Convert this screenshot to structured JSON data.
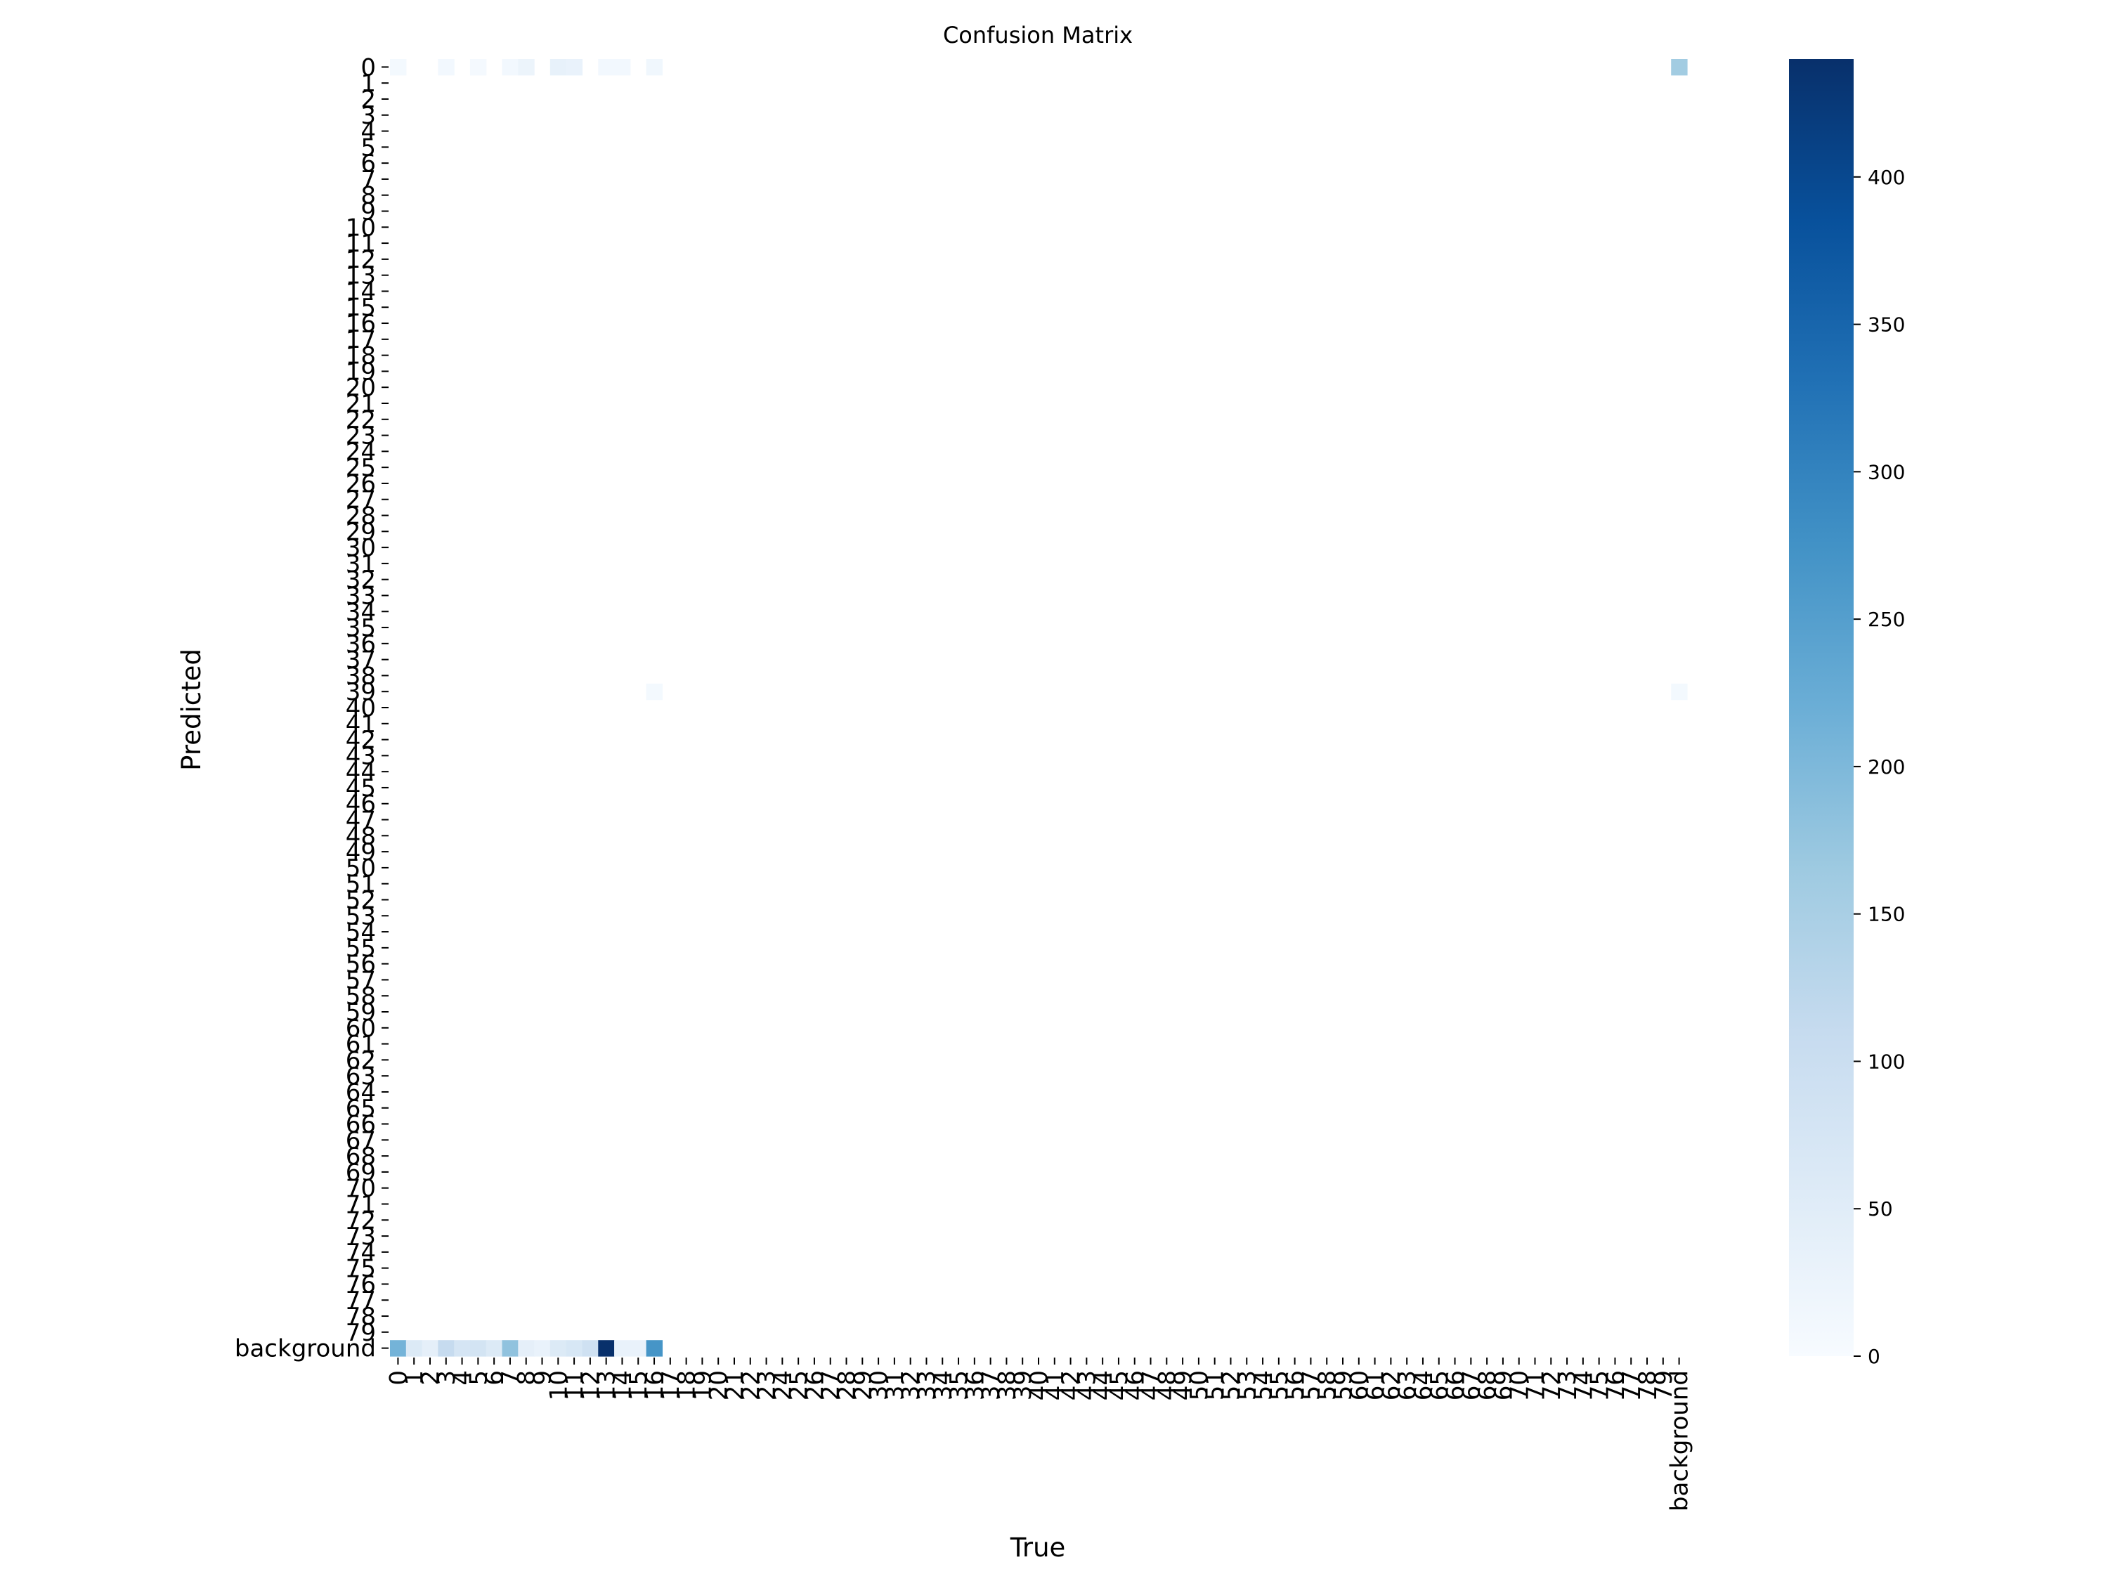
{
  "chart_data": {
    "type": "heatmap",
    "title": "Confusion Matrix",
    "xlabel": "True",
    "ylabel": "Predicted",
    "categories": [
      "0",
      "1",
      "2",
      "3",
      "4",
      "5",
      "6",
      "7",
      "8",
      "9",
      "10",
      "11",
      "12",
      "13",
      "14",
      "15",
      "16",
      "17",
      "18",
      "19",
      "20",
      "21",
      "22",
      "23",
      "24",
      "25",
      "26",
      "27",
      "28",
      "29",
      "30",
      "31",
      "32",
      "33",
      "34",
      "35",
      "36",
      "37",
      "38",
      "39",
      "40",
      "41",
      "42",
      "43",
      "44",
      "45",
      "46",
      "47",
      "48",
      "49",
      "50",
      "51",
      "52",
      "53",
      "54",
      "55",
      "56",
      "57",
      "58",
      "59",
      "60",
      "61",
      "62",
      "63",
      "64",
      "65",
      "66",
      "67",
      "68",
      "69",
      "70",
      "71",
      "72",
      "73",
      "74",
      "75",
      "76",
      "77",
      "78",
      "79",
      "background"
    ],
    "colormap": "Blues",
    "colorbar": {
      "min": 0,
      "max": 440,
      "ticks": [
        0,
        50,
        100,
        150,
        200,
        250,
        300,
        350,
        400
      ]
    },
    "cells": [
      {
        "pred": "0",
        "true": "0",
        "value": 8
      },
      {
        "pred": "0",
        "true": "3",
        "value": 10
      },
      {
        "pred": "0",
        "true": "5",
        "value": 6
      },
      {
        "pred": "0",
        "true": "7",
        "value": 10
      },
      {
        "pred": "0",
        "true": "8",
        "value": 25
      },
      {
        "pred": "0",
        "true": "10",
        "value": 35
      },
      {
        "pred": "0",
        "true": "11",
        "value": 30
      },
      {
        "pred": "0",
        "true": "13",
        "value": 10
      },
      {
        "pred": "0",
        "true": "14",
        "value": 10
      },
      {
        "pred": "0",
        "true": "16",
        "value": 15
      },
      {
        "pred": "0",
        "true": "background",
        "value": 160
      },
      {
        "pred": "39",
        "true": "16",
        "value": 8
      },
      {
        "pred": "39",
        "true": "background",
        "value": 8
      },
      {
        "pred": "background",
        "true": "0",
        "value": 210
      },
      {
        "pred": "background",
        "true": "1",
        "value": 60
      },
      {
        "pred": "background",
        "true": "2",
        "value": 40
      },
      {
        "pred": "background",
        "true": "3",
        "value": 110
      },
      {
        "pred": "background",
        "true": "4",
        "value": 75
      },
      {
        "pred": "background",
        "true": "5",
        "value": 80
      },
      {
        "pred": "background",
        "true": "6",
        "value": 60
      },
      {
        "pred": "background",
        "true": "7",
        "value": 180
      },
      {
        "pred": "background",
        "true": "8",
        "value": 40
      },
      {
        "pred": "background",
        "true": "9",
        "value": 30
      },
      {
        "pred": "background",
        "true": "10",
        "value": 60
      },
      {
        "pred": "background",
        "true": "11",
        "value": 70
      },
      {
        "pred": "background",
        "true": "12",
        "value": 90
      },
      {
        "pred": "background",
        "true": "13",
        "value": 440
      },
      {
        "pred": "background",
        "true": "14",
        "value": 30
      },
      {
        "pred": "background",
        "true": "15",
        "value": 30
      },
      {
        "pred": "background",
        "true": "16",
        "value": 270
      }
    ]
  }
}
